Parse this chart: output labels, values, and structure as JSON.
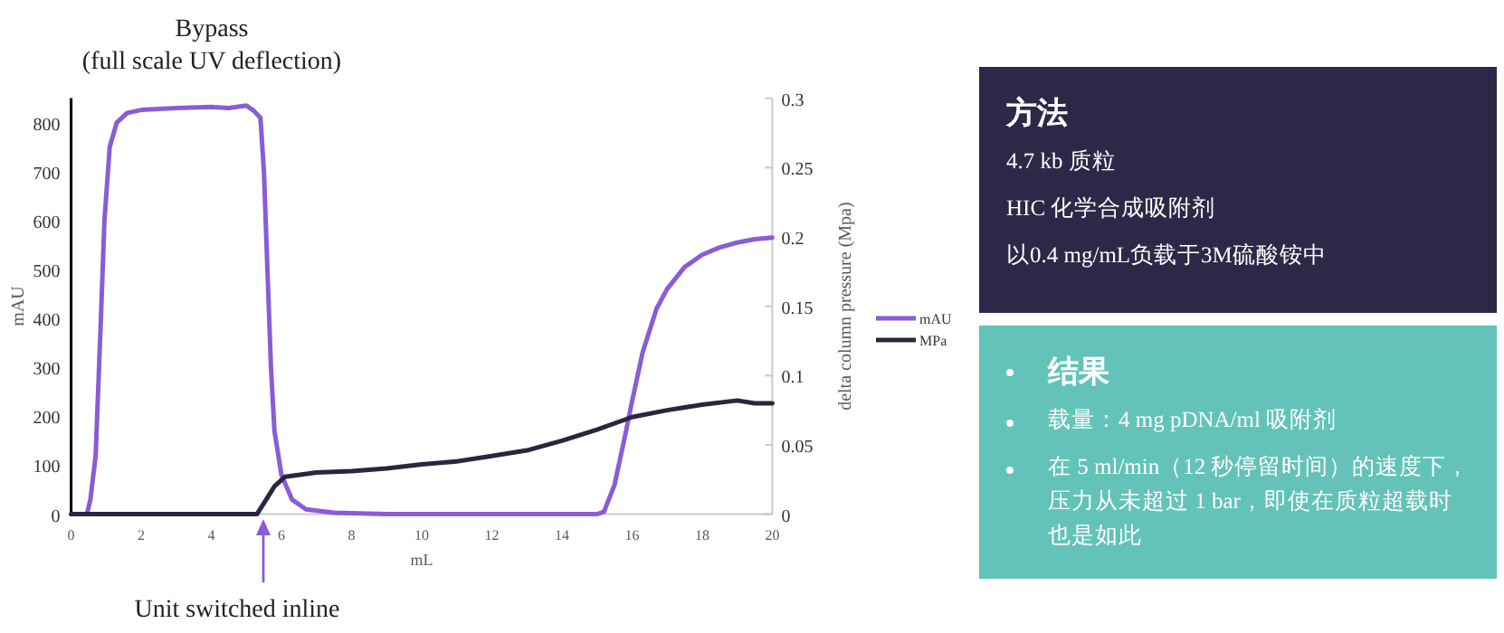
{
  "chart_data": [
    {
      "type": "line",
      "xlabel": "mL",
      "ylabel": "mAU",
      "y2label": "delta column pressure (Mpa)",
      "xlim": [
        0,
        20
      ],
      "xticks": [
        0,
        2,
        4,
        6,
        8,
        10,
        12,
        14,
        16,
        18,
        20
      ],
      "ylim": [
        0,
        850
      ],
      "yticks": [
        0,
        100,
        200,
        300,
        400,
        500,
        600,
        700,
        800
      ],
      "y2lim": [
        0,
        0.3
      ],
      "y2ticks": [
        0,
        0.05,
        0.1,
        0.15,
        0.2,
        0.25,
        0.3
      ],
      "grid": false,
      "legend": "right",
      "marker": "none",
      "line_style": "solid",
      "annotations": [
        "Bypass",
        "(full scale UV deflection)",
        "Unit switched inline"
      ],
      "series": [
        {
          "name": "mAU",
          "color": "#8a5cd6",
          "x": [
            0,
            0.45,
            0.55,
            0.7,
            0.85,
            0.95,
            1.1,
            1.3,
            1.6,
            2,
            3,
            4,
            4.5,
            5,
            5.2,
            5.4,
            5.5,
            5.6,
            5.7,
            5.8,
            6,
            6.3,
            6.7,
            7.5,
            9,
            15,
            15.2,
            15.5,
            15.8,
            16,
            16.3,
            16.7,
            17,
            17.5,
            18,
            18.5,
            19,
            19.5,
            20
          ],
          "values": [
            0,
            0,
            30,
            120,
            400,
            600,
            750,
            800,
            820,
            826,
            830,
            832,
            830,
            835,
            825,
            810,
            700,
            500,
            300,
            170,
            80,
            30,
            10,
            3,
            0,
            0,
            5,
            60,
            160,
            230,
            330,
            420,
            460,
            505,
            530,
            545,
            555,
            562,
            565
          ]
        },
        {
          "name": "MPa",
          "color": "#2b2540",
          "axis": "y2",
          "x": [
            0,
            5.3,
            5.5,
            5.8,
            6.1,
            7,
            8,
            9,
            10,
            11,
            12,
            13,
            14,
            15,
            16,
            17,
            18,
            19,
            19.5,
            20
          ],
          "values": [
            0,
            0,
            0.008,
            0.02,
            0.027,
            0.03,
            0.031,
            0.033,
            0.036,
            0.038,
            0.042,
            0.046,
            0.053,
            0.061,
            0.07,
            0.075,
            0.079,
            0.082,
            0.08,
            0.08
          ]
        }
      ]
    },
    {
      "type": "other",
      "title": "方法",
      "color": "#2e2848",
      "annotations": [
        "4.7 kb 质粒",
        "HIC 化学合成吸附剂",
        "以0.4 mg/mL负载于3M硫酸铵中"
      ]
    },
    {
      "type": "other",
      "title": "结果",
      "color": "#63c3b8",
      "annotations": [
        "载量：4 mg pDNA/ml 吸附剂",
        "在 5 ml/min（12 秒停留时间）的速度下，压力从未超过 1 bar，即使在质粒超载时也是如此"
      ]
    }
  ]
}
